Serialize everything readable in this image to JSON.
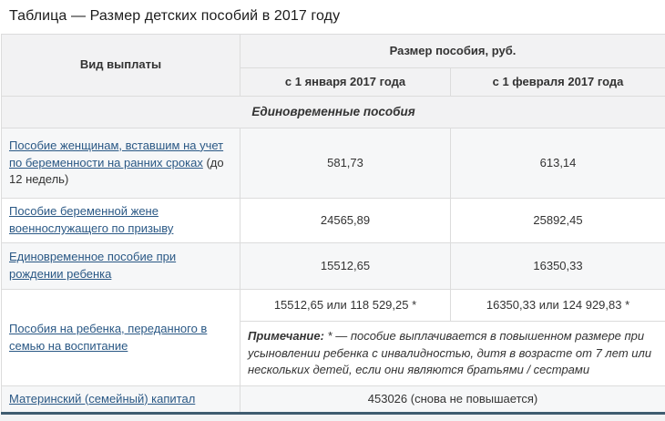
{
  "title": "Таблица — Размер детских пособий в 2017 году",
  "table": {
    "headers": {
      "payment_type": "Вид выплаты",
      "benefit_size_group": "Размер пособия, руб.",
      "from_january": "с 1 января 2017 года",
      "from_february": "с 1 февраля 2017 года"
    },
    "section_header": "Единовременные пособия",
    "rows": [
      {
        "label": "Пособие женщинам, вставшим на учет по беременности на ранних сроках",
        "label_suffix": " (до 12 недель)",
        "jan": "581,73",
        "feb": "613,14"
      },
      {
        "label": "Пособие беременной жене военнослужащего по призыву",
        "jan": "24565,89",
        "feb": "25892,45"
      },
      {
        "label": "Единовременное пособие при рождении ребенка",
        "jan": "15512,65",
        "feb": "16350,33"
      },
      {
        "label": "Пособия на ребенка, переданного в семью на воспитание",
        "jan": "15512,65 или 118 529,25 *",
        "feb": "16350,33 или 124 929,83 *",
        "note_label": "Примечание:",
        "note_text": " * — пособие выплачивается в повышенном размере при усыновлении ребенка с инвалидностью, дитя в возрасте от 7 лет или нескольких детей, если они являются братьями / сестрами"
      },
      {
        "label": "Материнский (семейный) капитал",
        "value": "453026 (снова не повышается)"
      }
    ],
    "colors": {
      "link": "#2a5885",
      "header_bg": "#f2f2f3",
      "stripe_bg": "#f6f7f8",
      "border": "#dcdcdc",
      "bottom_border": "#3f5c70",
      "text": "#333333"
    }
  }
}
